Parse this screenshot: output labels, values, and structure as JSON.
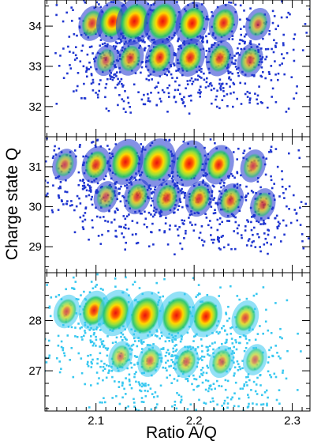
{
  "chart_data": {
    "type": "heatmap",
    "xlabel": "Ratio A/Q",
    "ylabel": "Charge state Q",
    "xlim": [
      2.048,
      2.318
    ],
    "x_ticks": [
      2.1,
      2.2,
      2.3
    ],
    "panels": [
      {
        "ylim": [
          31.25,
          34.65
        ],
        "y_ticks": [
          32,
          33,
          34
        ],
        "noise_color": "#1f35d0",
        "blobs": [
          {
            "x": 2.096,
            "y": 34.07,
            "intensity": 0.42
          },
          {
            "x": 2.117,
            "y": 34.12,
            "intensity": 0.72
          },
          {
            "x": 2.139,
            "y": 34.12,
            "intensity": 0.95
          },
          {
            "x": 2.168,
            "y": 34.12,
            "intensity": 1.0
          },
          {
            "x": 2.198,
            "y": 34.07,
            "intensity": 0.75
          },
          {
            "x": 2.23,
            "y": 34.08,
            "intensity": 0.55
          },
          {
            "x": 2.265,
            "y": 34.05,
            "intensity": 0.3
          },
          {
            "x": 2.11,
            "y": 33.15,
            "intensity": 0.25
          },
          {
            "x": 2.135,
            "y": 33.2,
            "intensity": 0.4
          },
          {
            "x": 2.165,
            "y": 33.22,
            "intensity": 0.55
          },
          {
            "x": 2.196,
            "y": 33.22,
            "intensity": 0.55
          },
          {
            "x": 2.226,
            "y": 33.2,
            "intensity": 0.45
          },
          {
            "x": 2.257,
            "y": 33.15,
            "intensity": 0.35
          }
        ]
      },
      {
        "ylim": [
          28.35,
          31.75
        ],
        "y_ticks": [
          29,
          30,
          31
        ],
        "noise_color": "#1f35d0",
        "blobs": [
          {
            "x": 2.068,
            "y": 31.05,
            "intensity": 0.28
          },
          {
            "x": 2.1,
            "y": 31.05,
            "intensity": 0.5
          },
          {
            "x": 2.13,
            "y": 31.12,
            "intensity": 0.88
          },
          {
            "x": 2.162,
            "y": 31.1,
            "intensity": 1.0
          },
          {
            "x": 2.195,
            "y": 31.08,
            "intensity": 0.9
          },
          {
            "x": 2.225,
            "y": 31.05,
            "intensity": 0.6
          },
          {
            "x": 2.26,
            "y": 31.02,
            "intensity": 0.32
          },
          {
            "x": 2.11,
            "y": 30.25,
            "intensity": 0.25
          },
          {
            "x": 2.142,
            "y": 30.25,
            "intensity": 0.42
          },
          {
            "x": 2.172,
            "y": 30.22,
            "intensity": 0.45
          },
          {
            "x": 2.205,
            "y": 30.2,
            "intensity": 0.45
          },
          {
            "x": 2.237,
            "y": 30.15,
            "intensity": 0.4
          },
          {
            "x": 2.27,
            "y": 30.05,
            "intensity": 0.32
          }
        ]
      },
      {
        "ylim": [
          26.2,
          28.95
        ],
        "y_ticks": [
          27,
          28
        ],
        "noise_color": "#38c8f0",
        "blobs": [
          {
            "x": 2.07,
            "y": 28.18,
            "intensity": 0.35
          },
          {
            "x": 2.098,
            "y": 28.2,
            "intensity": 0.6
          },
          {
            "x": 2.12,
            "y": 28.15,
            "intensity": 0.9
          },
          {
            "x": 2.15,
            "y": 28.1,
            "intensity": 1.0
          },
          {
            "x": 2.182,
            "y": 28.1,
            "intensity": 0.98
          },
          {
            "x": 2.212,
            "y": 28.08,
            "intensity": 0.7
          },
          {
            "x": 2.252,
            "y": 28.05,
            "intensity": 0.42
          },
          {
            "x": 2.125,
            "y": 27.28,
            "intensity": 0.25
          },
          {
            "x": 2.155,
            "y": 27.2,
            "intensity": 0.3
          },
          {
            "x": 2.192,
            "y": 27.18,
            "intensity": 0.3
          },
          {
            "x": 2.228,
            "y": 27.18,
            "intensity": 0.3
          },
          {
            "x": 2.262,
            "y": 27.22,
            "intensity": 0.25
          }
        ]
      }
    ]
  }
}
